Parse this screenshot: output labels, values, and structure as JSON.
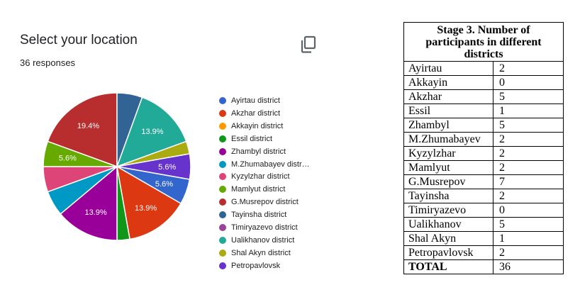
{
  "form": {
    "title": "Select your location",
    "responses": "36 responses",
    "copy_icon": "copy-icon"
  },
  "chart_data": {
    "type": "pie",
    "categories": [
      "Ayirtau district",
      "Akzhar district",
      "Akkayin district",
      "Essil district",
      "Zhambyl district",
      "M.Zhumabayev distr…",
      "Kyzylzhar district",
      "Mamlyut district",
      "G.Musrepov district",
      "Tayinsha district",
      "Timiryazevo district",
      "Ualikhanov district",
      "Shal Akyn district",
      "Petropavlovsk"
    ],
    "values": [
      2,
      5,
      0,
      1,
      5,
      2,
      2,
      2,
      7,
      2,
      0,
      5,
      1,
      2
    ],
    "colors": [
      "#3366cc",
      "#dc3912",
      "#ff9900",
      "#109618",
      "#990099",
      "#0099c6",
      "#dd4477",
      "#66aa00",
      "#b82e2e",
      "#316395",
      "#994499",
      "#22aa99",
      "#aaaa11",
      "#6633cc"
    ],
    "slice_labels": [
      "5.6%",
      "13.9%",
      "",
      "",
      "13.9%",
      "",
      "",
      "5.6%",
      "19.4%",
      "",
      "",
      "13.9%",
      "",
      "5.6%"
    ],
    "legend_position": "right"
  },
  "table": {
    "title": "Stage 3. Number of participants in different districts",
    "rows": [
      {
        "district": "Ayirtau",
        "count": "2"
      },
      {
        "district": "Akkayin",
        "count": "0"
      },
      {
        "district": "Akzhar",
        "count": "5"
      },
      {
        "district": "Essil",
        "count": "1"
      },
      {
        "district": "Zhambyl",
        "count": "5"
      },
      {
        "district": "M.Zhumabayev",
        "count": "2"
      },
      {
        "district": "Kyzylzhar",
        "count": "2"
      },
      {
        "district": "Mamlyut",
        "count": "2"
      },
      {
        "district": "G.Musrepov",
        "count": "7"
      },
      {
        "district": "Tayinsha",
        "count": "2"
      },
      {
        "district": "Timiryazevo",
        "count": "0"
      },
      {
        "district": "Ualikhanov",
        "count": "5"
      },
      {
        "district": "Shal Akyn",
        "count": "1"
      },
      {
        "district": "Petropavlovsk",
        "count": "2"
      }
    ],
    "total_label": "TOTAL",
    "total_value": "36"
  }
}
